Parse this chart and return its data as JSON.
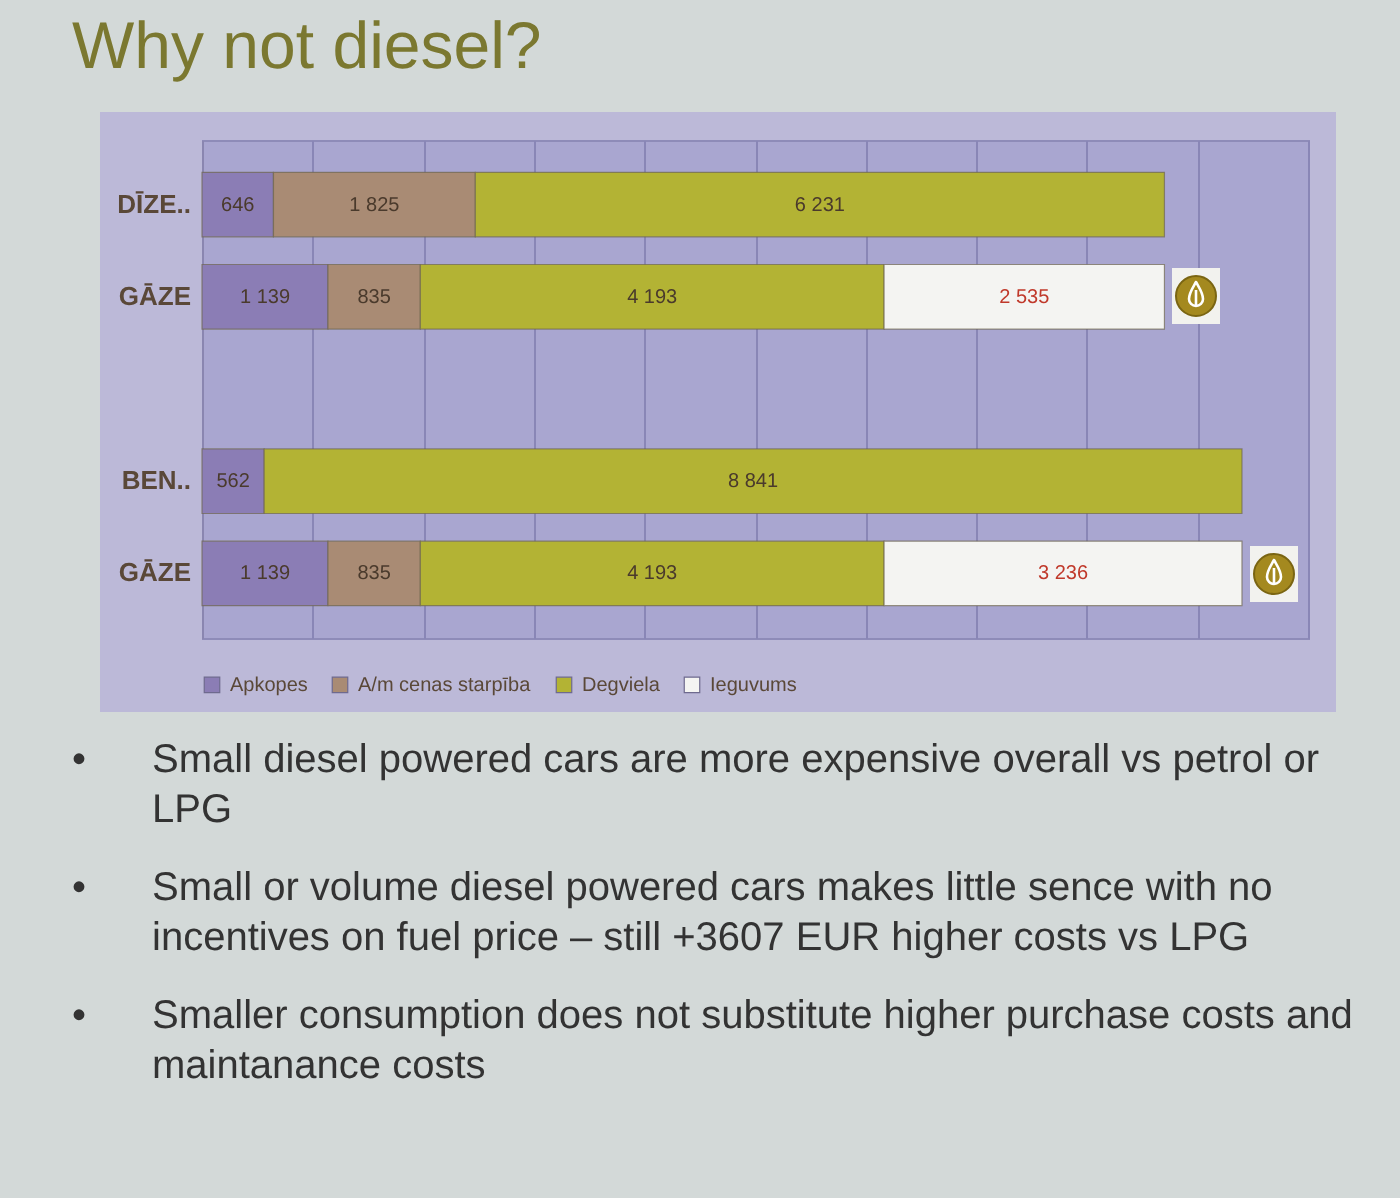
{
  "chart_data": {
    "type": "bar",
    "orientation": "horizontal",
    "stacked": true,
    "title": "Why not diesel?",
    "categories": [
      "DĪZE..",
      "GĀZE",
      "BEN..",
      "GĀZE"
    ],
    "series": [
      {
        "name": "Apkopes",
        "color": "#8b7db5",
        "values": [
          646,
          1139,
          562,
          1139
        ],
        "value_labels": [
          "646",
          "1 139",
          "562",
          "1 139"
        ]
      },
      {
        "name": "A/m cenas starpība",
        "color": "#a98b74",
        "values": [
          1825,
          835,
          null,
          835
        ],
        "value_labels": [
          "1 825",
          "835",
          null,
          "835"
        ]
      },
      {
        "name": "Degviela",
        "color": "#b3b334",
        "values": [
          6231,
          4193,
          8841,
          4193
        ],
        "value_labels": [
          "6 231",
          "4 193",
          "8 841",
          "4 193"
        ]
      },
      {
        "name": "Ieguvums",
        "color": "#f4f4f2",
        "values": [
          null,
          2535,
          null,
          3236
        ],
        "value_labels": [
          null,
          "2 535",
          null,
          "3 236"
        ]
      }
    ],
    "xlim": [
      0,
      10000
    ],
    "xticks": [
      {
        "value": 0,
        "label": null
      },
      {
        "value": 1000,
        "label": null
      },
      {
        "value": 2000,
        "label": null
      },
      {
        "value": 3000,
        "label": null
      },
      {
        "value": 4000,
        "label": null
      },
      {
        "value": 5000,
        "label": null
      },
      {
        "value": 6000,
        "label": null
      },
      {
        "value": 7000,
        "label": null
      },
      {
        "value": 8000,
        "label": null
      },
      {
        "value": 9000,
        "label": null
      },
      {
        "value": 10000,
        "label": null
      }
    ],
    "grid": "x",
    "legend": "bottom",
    "tick_labels": "y",
    "annotations": [
      "• Small diesel powered cars are more expensive overall vs petrol or LPG",
      "• Small or volume diesel powered cars makes little sence with no incentives on fuel price – still +3607 EUR higher costs vs LPG",
      "• Smaller consumption does not substitute higher purchase costs and maintanance costs"
    ]
  }
}
